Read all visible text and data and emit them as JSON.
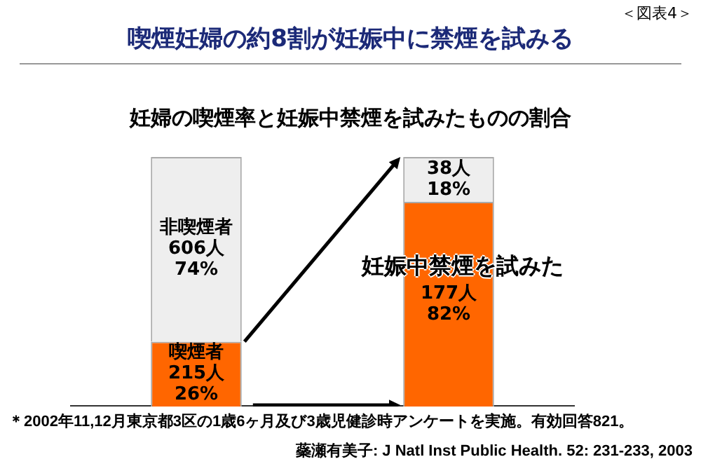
{
  "chart_data": {
    "type": "bar",
    "stacked": true,
    "title": "喫煙妊婦の約8割が妊娠中に禁煙を試みる",
    "subtitle": "妊婦の喫煙率と妊娠中禁煙を試みたものの割合",
    "annotations": [
      "＜図表4＞",
      "妊娠中禁煙を試みた",
      "＊2002年11,12月東京都3区の1歳6ヶ月及び3歳児健診時アンケートを実施。有効回答821。",
      "蘂瀬有美子: J Natl Inst Public Health. 52: 231-233, 2003"
    ],
    "categories": [
      null,
      null
    ],
    "series": [
      {
        "color": "#ff6600",
        "values": [
          26,
          82
        ],
        "value_labels": [
          "喫煙者\n215人\n26%",
          "177人\n82%"
        ]
      },
      {
        "color": "#eeeeee",
        "values": [
          74,
          18
        ],
        "value_labels": [
          "非喫煙者\n606人\n74%",
          "38人\n18%"
        ]
      }
    ],
    "legend": false,
    "grid": false
  }
}
